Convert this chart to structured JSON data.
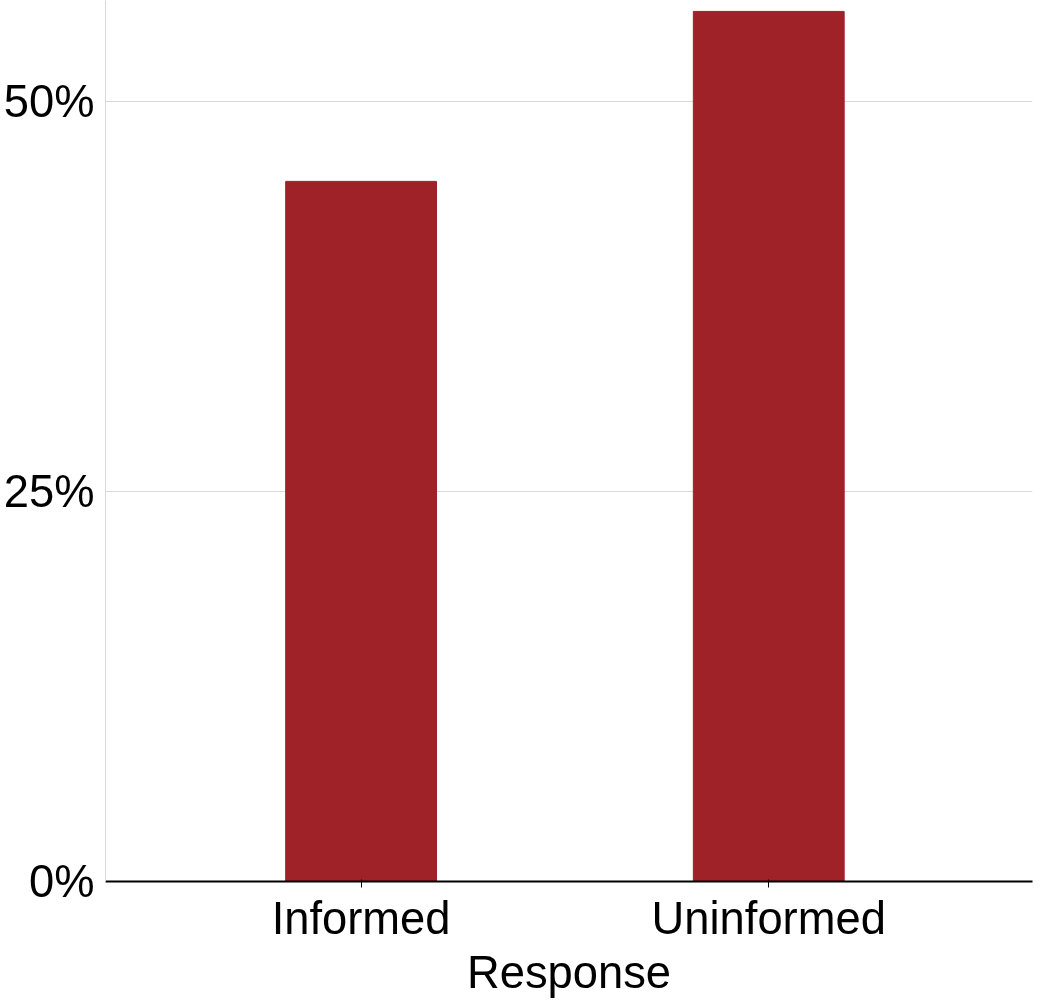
{
  "chart_data": {
    "type": "bar",
    "xlabel": "Response",
    "categories": [
      "Informed",
      "Uninformed"
    ],
    "values": [
      44.9,
      55.8
    ],
    "color": "#9e2228",
    "ylim": [
      0,
      56.5
    ],
    "yticks": [
      {
        "value": 0,
        "label": "0%"
      },
      {
        "value": 25,
        "label": "25%"
      },
      {
        "value": 50,
        "label": "50%"
      }
    ],
    "grid": "y"
  }
}
